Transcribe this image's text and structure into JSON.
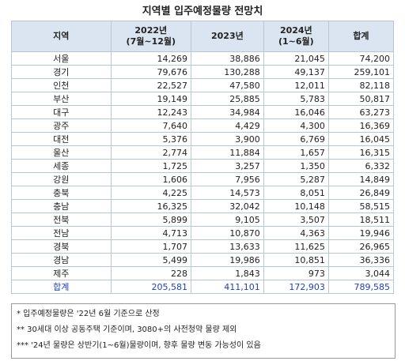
{
  "header": {
    "title": "지역별 입주예정물량 전망치"
  },
  "table": {
    "columns": [
      [
        "지역"
      ],
      [
        "2022년",
        "(7월~12월)"
      ],
      [
        "2023년"
      ],
      [
        "2024년",
        "(1~6월)"
      ],
      [
        "합계"
      ]
    ],
    "rows": [
      [
        "서울",
        "14,269",
        "38,886",
        "21,045",
        "74,200"
      ],
      [
        "경기",
        "79,676",
        "130,288",
        "49,137",
        "259,101"
      ],
      [
        "인천",
        "22,527",
        "47,580",
        "12,011",
        "82,118"
      ],
      [
        "부산",
        "19,149",
        "25,885",
        "5,783",
        "50,817"
      ],
      [
        "대구",
        "12,243",
        "34,984",
        "16,046",
        "63,273"
      ],
      [
        "광주",
        "7,640",
        "4,429",
        "4,300",
        "16,369"
      ],
      [
        "대전",
        "5,376",
        "3,900",
        "6,769",
        "16,045"
      ],
      [
        "울산",
        "2,774",
        "11,884",
        "1,657",
        "16,315"
      ],
      [
        "세종",
        "1,725",
        "3,257",
        "1,350",
        "6,332"
      ],
      [
        "강원",
        "1,606",
        "7,956",
        "5,287",
        "14,849"
      ],
      [
        "충북",
        "4,225",
        "14,573",
        "8,051",
        "26,849"
      ],
      [
        "충남",
        "16,325",
        "32,042",
        "10,148",
        "58,515"
      ],
      [
        "전북",
        "5,899",
        "9,105",
        "3,507",
        "18,511"
      ],
      [
        "전남",
        "4,713",
        "10,870",
        "4,363",
        "19,946"
      ],
      [
        "경북",
        "1,707",
        "13,633",
        "11,625",
        "26,965"
      ],
      [
        "경남",
        "5,499",
        "19,986",
        "10,851",
        "36,336"
      ],
      [
        "제주",
        "228",
        "1,843",
        "973",
        "3,044"
      ]
    ],
    "total": [
      "합계",
      "205,581",
      "411,101",
      "172,903",
      "789,585"
    ]
  },
  "notes": [
    "* 입주예정물량은 '22년 6월 기준으로 산정",
    "** 30세대 이상 공동주택 기준이며, 3080+의 사전청약 물량 제외",
    "*** '24년 물량은 상반기(1~6월)물량이며, 향후 물량 변동 가능성이 있음"
  ]
}
